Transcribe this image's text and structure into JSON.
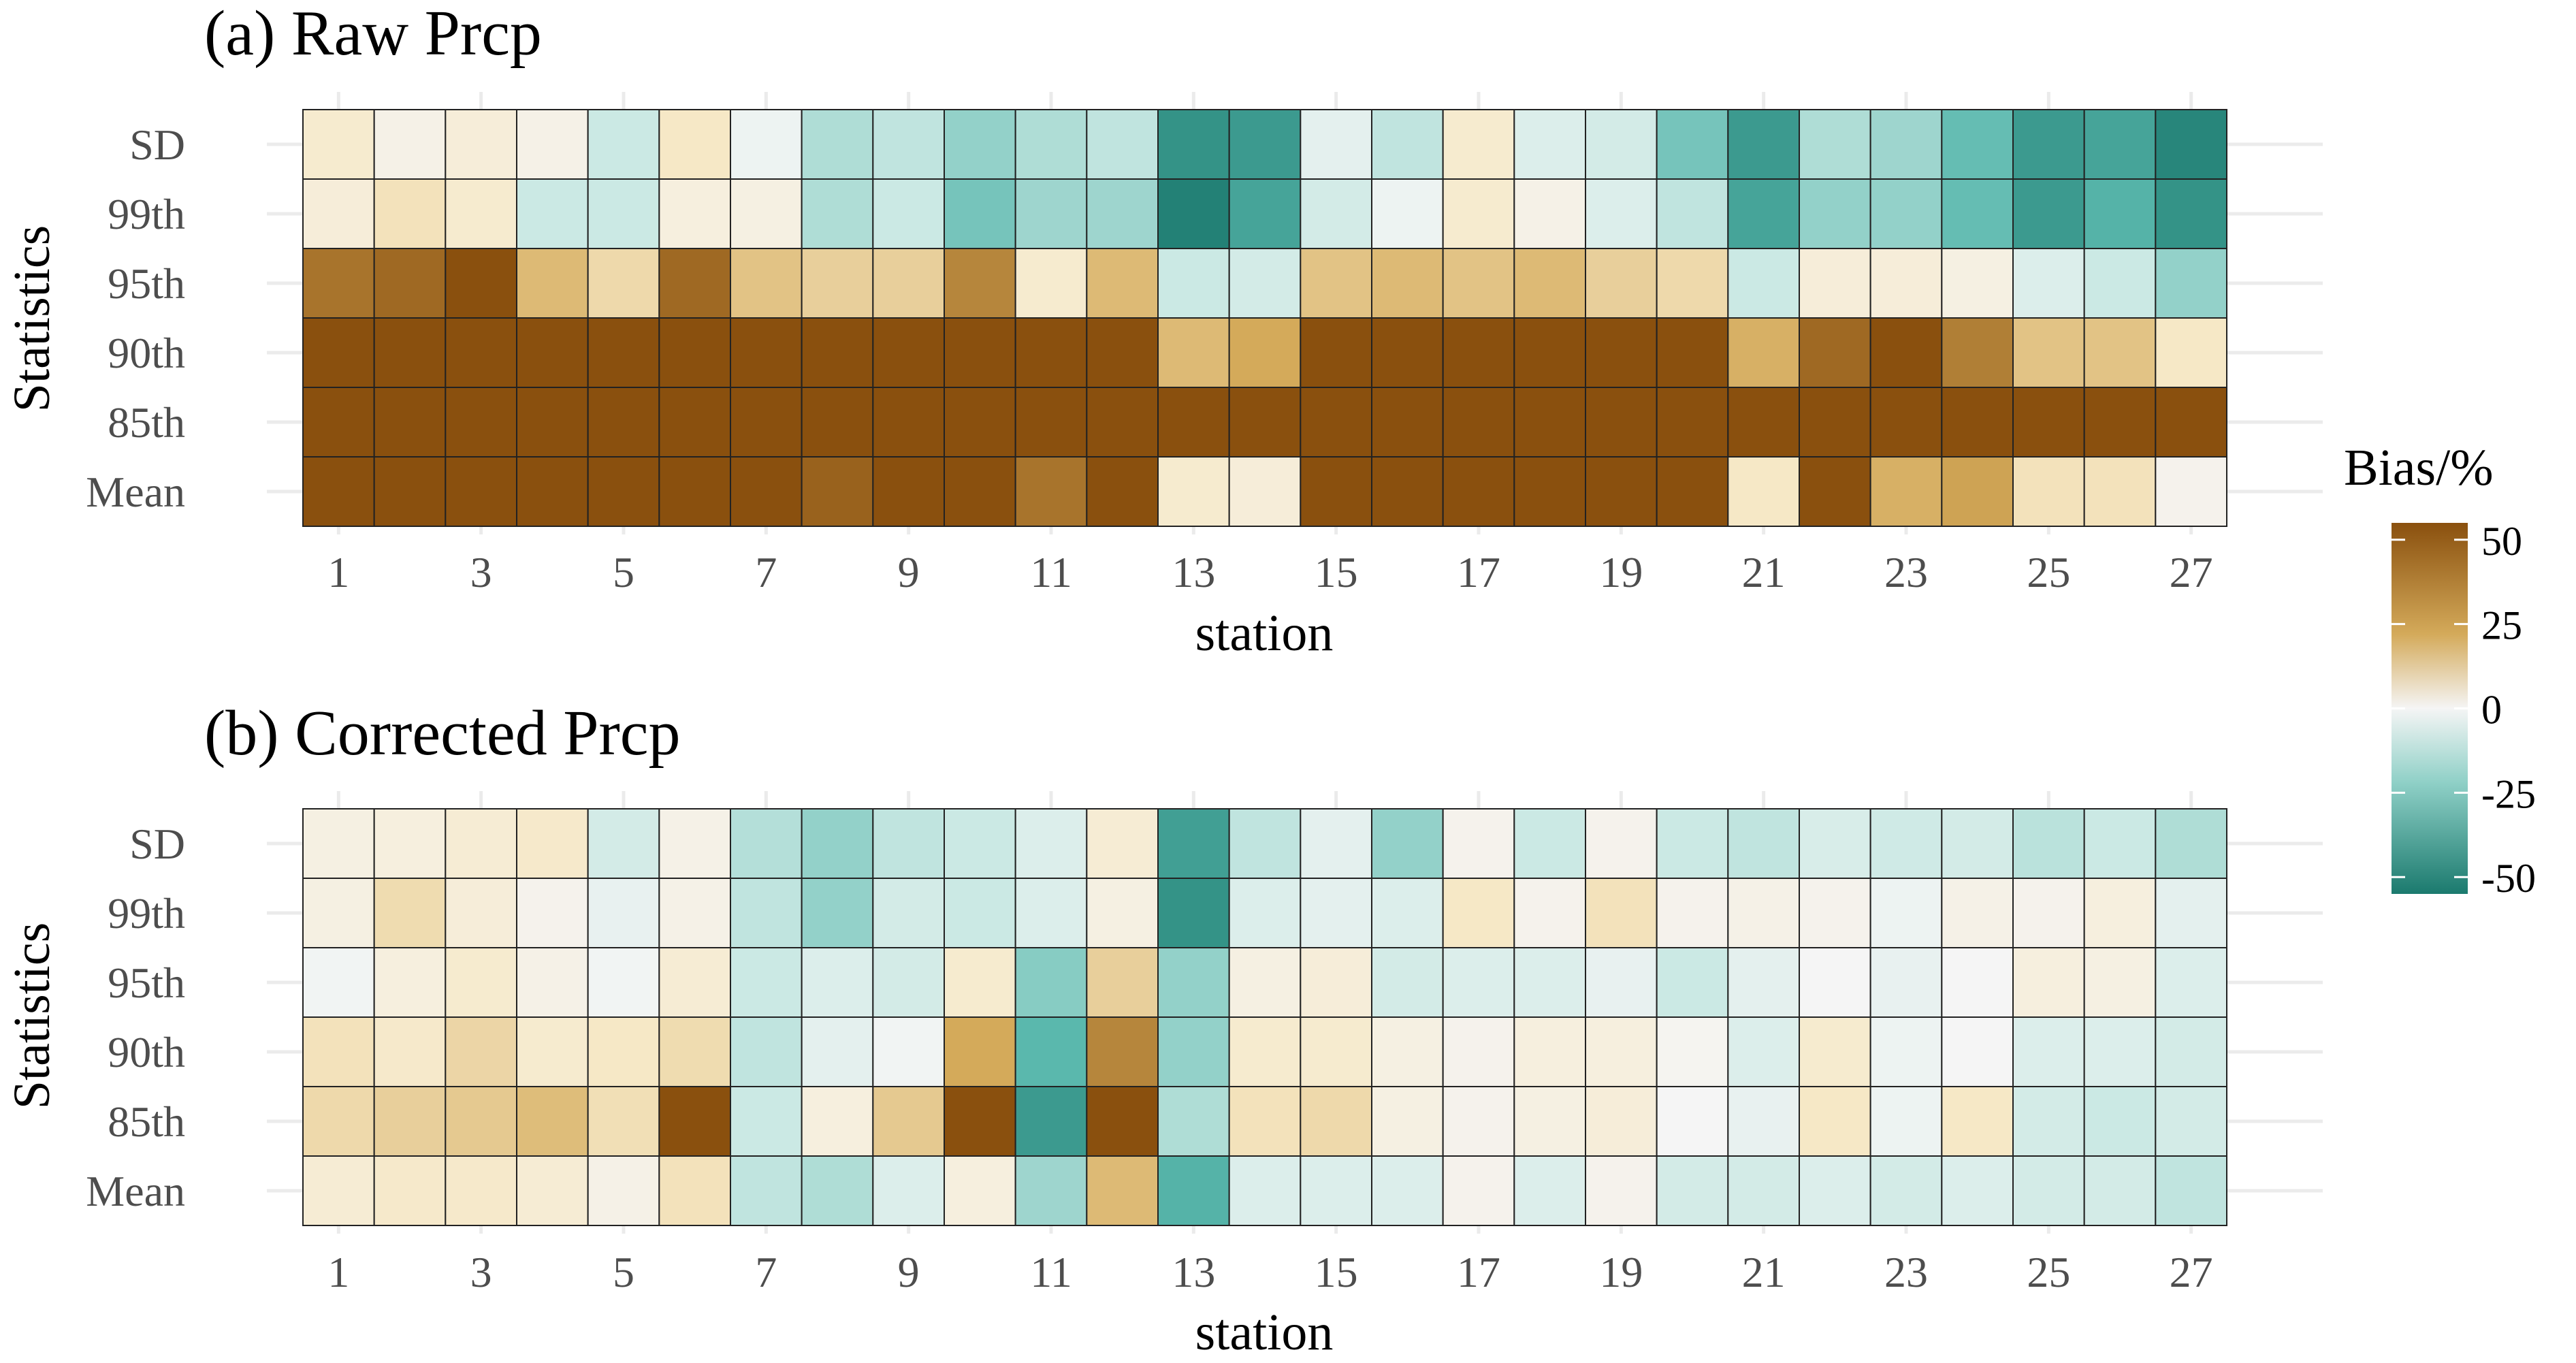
{
  "chart_data": [
    {
      "type": "heatmap",
      "title": "(a) Raw Prcp",
      "xlabel": "station",
      "ylabel": "Statistics",
      "x": [
        1,
        2,
        3,
        4,
        5,
        6,
        7,
        8,
        9,
        10,
        11,
        12,
        13,
        14,
        15,
        16,
        17,
        18,
        19,
        20,
        21,
        22,
        23,
        24,
        25,
        26,
        27
      ],
      "x_tick_labels": [
        "1",
        "3",
        "5",
        "7",
        "9",
        "11",
        "13",
        "15",
        "17",
        "19",
        "21",
        "23",
        "25",
        "27"
      ],
      "y_categories": [
        "SD",
        "99th",
        "95th",
        "90th",
        "85th",
        "Mean"
      ],
      "values": [
        [
          8,
          3,
          6,
          3,
          -10,
          10,
          -2,
          -15,
          -12,
          -20,
          -15,
          -12,
          -45,
          -42,
          -4,
          -12,
          8,
          -6,
          -8,
          -25,
          -42,
          -15,
          -18,
          -28,
          -42,
          -38,
          -50
        ],
        [
          6,
          12,
          8,
          -10,
          -10,
          5,
          4,
          -15,
          -10,
          -25,
          -18,
          -18,
          -52,
          -38,
          -8,
          -2,
          8,
          3,
          -6,
          -12,
          -38,
          -20,
          -20,
          -28,
          -42,
          -32,
          -45
        ],
        [
          45,
          48,
          55,
          25,
          15,
          48,
          22,
          18,
          18,
          40,
          8,
          25,
          -10,
          -8,
          22,
          25,
          22,
          25,
          18,
          15,
          -10,
          6,
          6,
          4,
          -6,
          -10,
          -20
        ],
        [
          55,
          55,
          55,
          55,
          55,
          55,
          55,
          55,
          55,
          55,
          55,
          55,
          25,
          30,
          55,
          55,
          55,
          55,
          55,
          55,
          28,
          48,
          55,
          42,
          22,
          22,
          10
        ],
        [
          55,
          55,
          55,
          55,
          55,
          55,
          55,
          55,
          55,
          55,
          55,
          55,
          55,
          55,
          55,
          55,
          55,
          55,
          55,
          55,
          55,
          55,
          55,
          55,
          55,
          55,
          55
        ],
        [
          55,
          55,
          55,
          55,
          55,
          55,
          55,
          50,
          55,
          55,
          45,
          55,
          8,
          6,
          55,
          55,
          55,
          55,
          55,
          55,
          10,
          55,
          28,
          32,
          12,
          12,
          2
        ]
      ]
    },
    {
      "type": "heatmap",
      "title": "(b) Corrected Prcp",
      "xlabel": "station",
      "ylabel": "Statistics",
      "x": [
        1,
        2,
        3,
        4,
        5,
        6,
        7,
        8,
        9,
        10,
        11,
        12,
        13,
        14,
        15,
        16,
        17,
        18,
        19,
        20,
        21,
        22,
        23,
        24,
        25,
        26,
        27
      ],
      "x_tick_labels": [
        "1",
        "3",
        "5",
        "7",
        "9",
        "11",
        "13",
        "15",
        "17",
        "19",
        "21",
        "23",
        "25",
        "27"
      ],
      "y_categories": [
        "SD",
        "99th",
        "95th",
        "90th",
        "85th",
        "Mean"
      ],
      "values": [
        [
          4,
          5,
          7,
          9,
          -8,
          3,
          -14,
          -20,
          -12,
          -10,
          -6,
          7,
          -40,
          -12,
          -4,
          -20,
          2,
          -10,
          2,
          -10,
          -12,
          -7,
          -9,
          -8,
          -13,
          -10,
          -15
        ],
        [
          4,
          14,
          6,
          2,
          -3,
          3,
          -12,
          -20,
          -8,
          -10,
          -6,
          4,
          -45,
          -6,
          -4,
          -6,
          10,
          2,
          12,
          2,
          3,
          2,
          -2,
          3,
          2,
          5,
          -4
        ],
        [
          -1,
          5,
          8,
          3,
          -1,
          7,
          -10,
          -6,
          -8,
          8,
          -22,
          18,
          -20,
          4,
          6,
          -8,
          -6,
          -6,
          -3,
          -10,
          -4,
          0,
          -3,
          0,
          5,
          4,
          -6
        ],
        [
          12,
          9,
          16,
          8,
          10,
          14,
          -12,
          -4,
          -1,
          30,
          -30,
          40,
          -20,
          8,
          8,
          4,
          2,
          5,
          5,
          1,
          -6,
          8,
          -2,
          0,
          -6,
          -6,
          -8
        ],
        [
          15,
          18,
          20,
          24,
          13,
          55,
          -10,
          5,
          20,
          55,
          -42,
          55,
          -15,
          12,
          15,
          4,
          2,
          4,
          6,
          0,
          -3,
          10,
          -2,
          10,
          -8,
          -10,
          -8
        ],
        [
          7,
          9,
          9,
          7,
          3,
          12,
          -12,
          -15,
          -6,
          5,
          -18,
          25,
          -32,
          -6,
          -6,
          -6,
          2,
          -6,
          2,
          -8,
          -8,
          -6,
          -8,
          -6,
          -8,
          -8,
          -12
        ]
      ]
    }
  ],
  "legend": {
    "title": "Bias/%",
    "ticks": [
      "50",
      "25",
      "0",
      "-25",
      "-50"
    ],
    "tick_values": [
      50,
      25,
      0,
      -25,
      -50
    ],
    "range": [
      -55,
      55
    ]
  },
  "colors": {
    "neg_strong": "#1b7a6e",
    "neg_mid": "#5ab8ad",
    "neg_light": "#cbe9e4",
    "neutral": "#f5f5f5",
    "pos_light": "#f6e8c6",
    "pos_mid": "#d4aa5a",
    "pos_strong": "#8a500e",
    "grid": "#ebebeb"
  }
}
